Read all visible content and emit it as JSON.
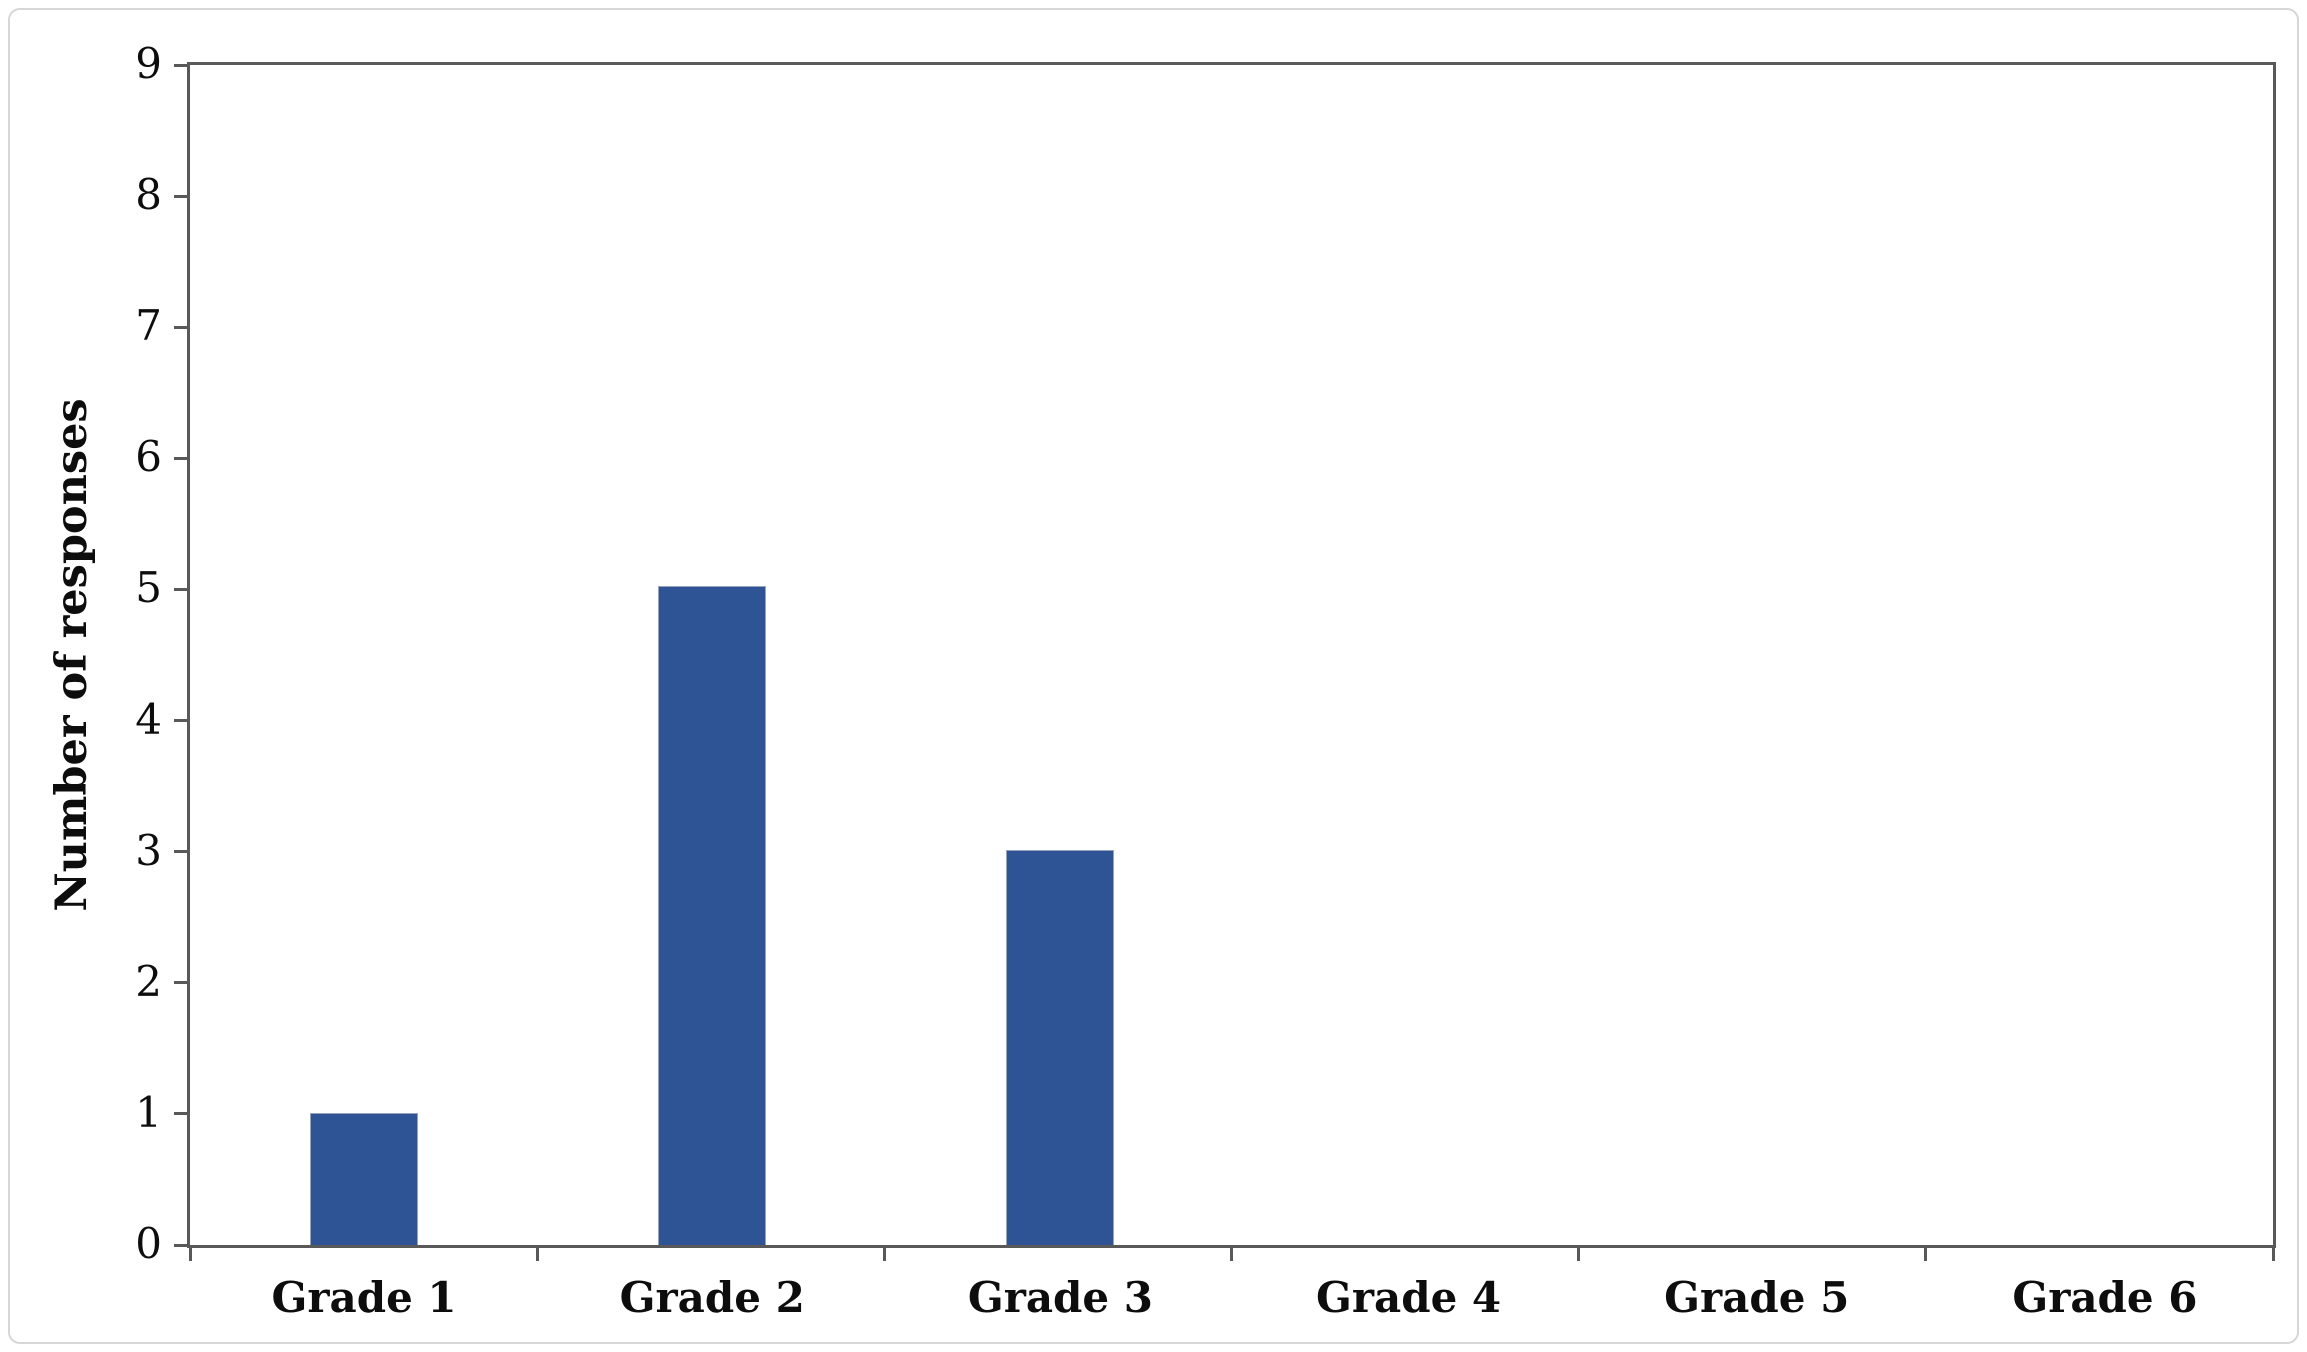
{
  "chart_data": {
    "type": "bar",
    "categories": [
      "Grade 1",
      "Grade 2",
      "Grade 3",
      "Grade 4",
      "Grade 5",
      "Grade 6"
    ],
    "values": [
      1,
      5,
      3,
      0,
      0,
      0
    ],
    "title": "",
    "xlabel": "",
    "ylabel": "Number of responses",
    "ylim": [
      0,
      9
    ],
    "ytick_step": 1,
    "ytick_labels": [
      "0",
      "1",
      "2",
      "3",
      "4",
      "5",
      "6",
      "7",
      "8",
      "9"
    ],
    "grid": false,
    "legend_position": "none",
    "bar_color": "#2F5496",
    "bar_border_color": "#97A2BC",
    "axis_color": "#595959",
    "text_color": "#0d0d0d"
  }
}
